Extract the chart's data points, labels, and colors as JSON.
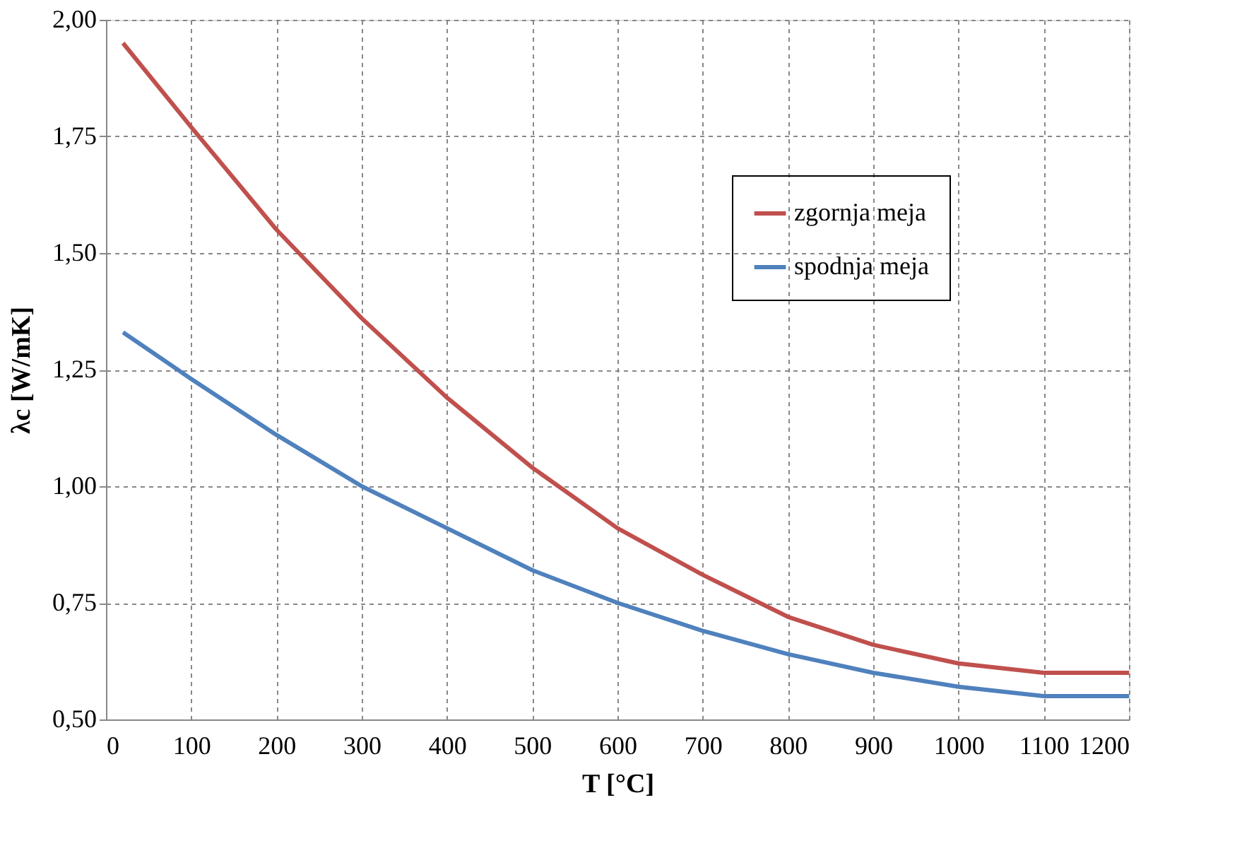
{
  "chart_data": {
    "type": "line",
    "xlabel": "T [°C]",
    "ylabel": "λc [W/mK]",
    "x": [
      20,
      100,
      200,
      300,
      400,
      500,
      600,
      700,
      800,
      900,
      1000,
      1100,
      1200
    ],
    "series": [
      {
        "name": "zgornja meja",
        "color": "#c0504d",
        "values": [
          1.95,
          1.77,
          1.55,
          1.36,
          1.19,
          1.04,
          0.91,
          0.81,
          0.72,
          0.66,
          0.62,
          0.6,
          0.6
        ]
      },
      {
        "name": "spodnja meja",
        "color": "#4f81bd",
        "values": [
          1.33,
          1.23,
          1.11,
          1.0,
          0.91,
          0.82,
          0.75,
          0.69,
          0.64,
          0.6,
          0.57,
          0.55,
          0.55
        ]
      }
    ],
    "xlim": [
      0,
      1200
    ],
    "xticks": [
      0,
      100,
      200,
      300,
      400,
      500,
      600,
      700,
      800,
      900,
      1000,
      1100,
      1200
    ],
    "ylim": [
      0.5,
      2.0
    ],
    "yticks": [
      {
        "value": 0.5,
        "label": "0,50"
      },
      {
        "value": 0.75,
        "label": "0,75"
      },
      {
        "value": 1.0,
        "label": "1,00"
      },
      {
        "value": 1.25,
        "label": "1,25"
      },
      {
        "value": 1.5,
        "label": "1,50"
      },
      {
        "value": 1.75,
        "label": "1,75"
      },
      {
        "value": 2.0,
        "label": "2,00"
      }
    ],
    "grid": true,
    "legend": "top right",
    "marker": "none",
    "line_style": "solid"
  }
}
